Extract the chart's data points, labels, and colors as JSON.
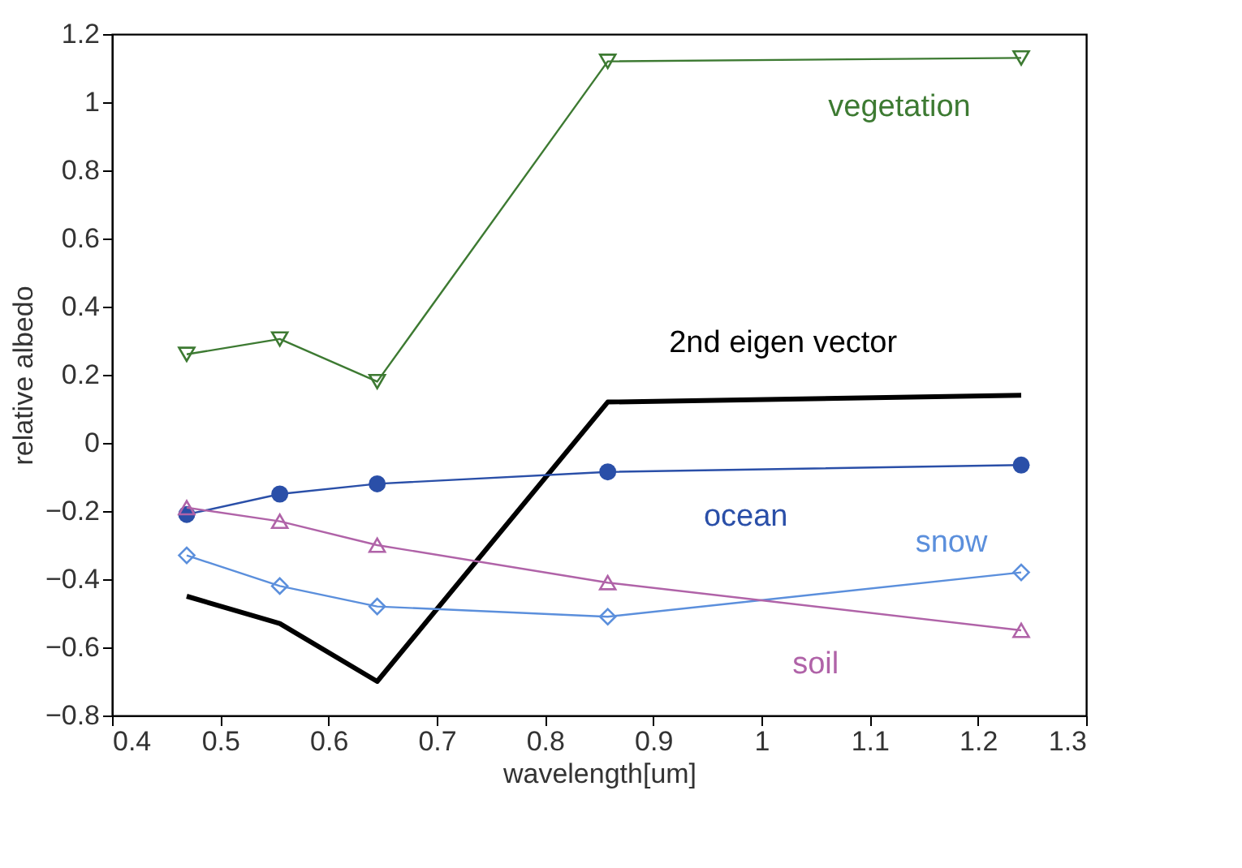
{
  "chart_data": {
    "type": "line",
    "xlabel": "wavelength[um]",
    "ylabel": "relative albedo",
    "x": [
      0.469,
      0.555,
      0.645,
      0.858,
      1.24
    ],
    "xlim": [
      0.4,
      1.3
    ],
    "xticks": [
      0.4,
      0.5,
      0.6,
      0.7,
      0.8,
      0.9,
      1,
      1.1,
      1.2,
      1.3
    ],
    "ylim": [
      -0.8,
      1.2
    ],
    "yticks": [
      -0.8,
      -0.6,
      -0.4,
      -0.2,
      0,
      0.2,
      0.4,
      0.6,
      0.8,
      1,
      1.2
    ],
    "grid": false,
    "legend": false,
    "line_style": "solid",
    "series": [
      {
        "name": "vegetation",
        "color": "#3d7a32",
        "marker": "triangle-down",
        "values": [
          0.26,
          0.305,
          0.18,
          1.12,
          1.13
        ]
      },
      {
        "name": "2nd eigen vector",
        "color": "#000000",
        "marker": "none",
        "values": [
          -0.45,
          -0.53,
          -0.7,
          0.12,
          0.14
        ]
      },
      {
        "name": "ocean",
        "color": "#2a4fa8",
        "marker": "circle",
        "values": [
          -0.21,
          -0.15,
          -0.12,
          -0.085,
          -0.065
        ]
      },
      {
        "name": "snow",
        "color": "#5b8fdc",
        "marker": "diamond",
        "values": [
          -0.33,
          -0.42,
          -0.48,
          -0.51,
          -0.38
        ]
      },
      {
        "name": "soil",
        "color": "#b063a8",
        "marker": "triangle",
        "values": [
          -0.19,
          -0.23,
          -0.3,
          -0.41,
          -0.55
        ]
      }
    ]
  }
}
